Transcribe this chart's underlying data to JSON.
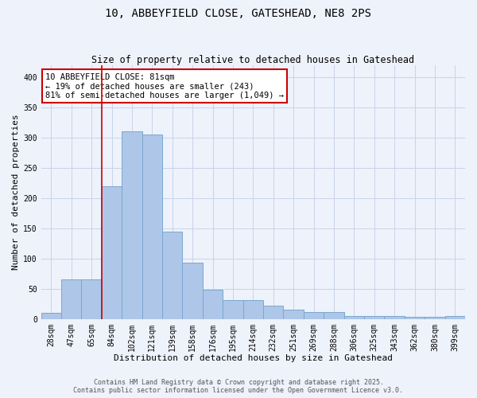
{
  "title_line1": "10, ABBEYFIELD CLOSE, GATESHEAD, NE8 2PS",
  "title_line2": "Size of property relative to detached houses in Gateshead",
  "xlabel": "Distribution of detached houses by size in Gateshead",
  "ylabel": "Number of detached properties",
  "categories": [
    "28sqm",
    "47sqm",
    "65sqm",
    "84sqm",
    "102sqm",
    "121sqm",
    "139sqm",
    "158sqm",
    "176sqm",
    "195sqm",
    "214sqm",
    "232sqm",
    "251sqm",
    "269sqm",
    "288sqm",
    "306sqm",
    "325sqm",
    "343sqm",
    "362sqm",
    "380sqm",
    "399sqm"
  ],
  "values": [
    10,
    65,
    65,
    220,
    310,
    305,
    145,
    93,
    49,
    31,
    31,
    22,
    15,
    12,
    11,
    5,
    5,
    5,
    3,
    3,
    5
  ],
  "bar_color": "#aec6e8",
  "bar_edge_color": "#7aa8d0",
  "vline_color": "#cc0000",
  "vline_x_index": 2.5,
  "annotation_text": "10 ABBEYFIELD CLOSE: 81sqm\n← 19% of detached houses are smaller (243)\n81% of semi-detached houses are larger (1,049) →",
  "annotation_box_color": "#cc0000",
  "annotation_fill": "white",
  "ylim": [
    0,
    420
  ],
  "yticks": [
    0,
    50,
    100,
    150,
    200,
    250,
    300,
    350,
    400
  ],
  "footer_line1": "Contains HM Land Registry data © Crown copyright and database right 2025.",
  "footer_line2": "Contains public sector information licensed under the Open Government Licence v3.0.",
  "bg_color": "#eef2fb",
  "grid_color": "#c8d4ea",
  "title1_fontsize": 10,
  "title2_fontsize": 8.5,
  "xlabel_fontsize": 8,
  "ylabel_fontsize": 8,
  "tick_fontsize": 7,
  "annotation_fontsize": 7.5,
  "footer_fontsize": 6
}
